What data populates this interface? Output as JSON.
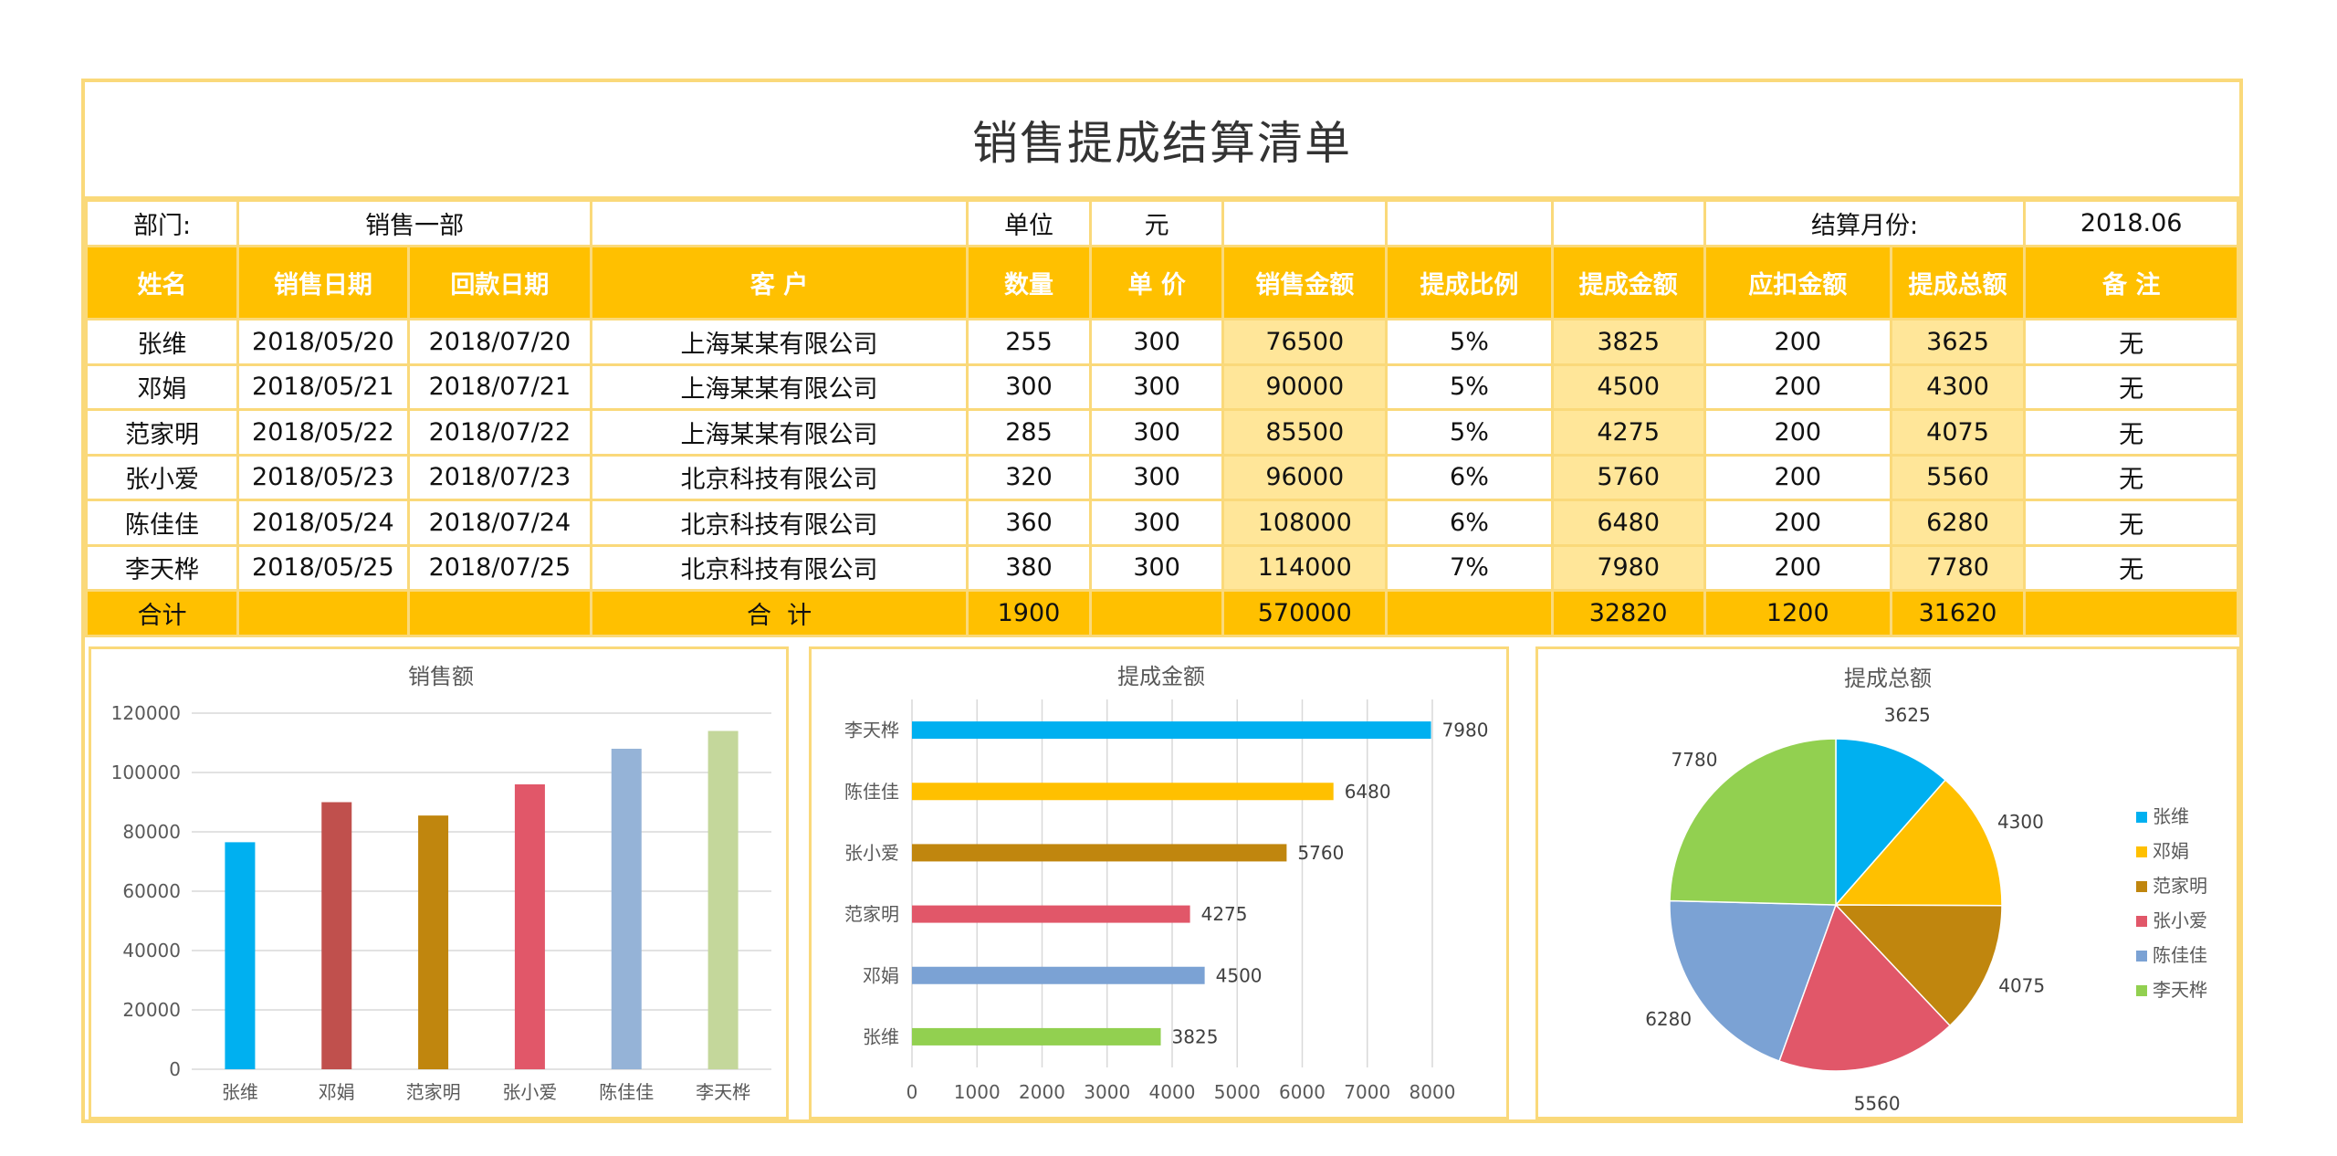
{
  "title": "销售提成结算清单",
  "info": {
    "dept_label": "部门:",
    "dept_value": "销售一部",
    "unit_label": "单位",
    "unit_value": "元",
    "month_label": "结算月份:",
    "month_value": "2018.06"
  },
  "columns": [
    "姓名",
    "销售日期",
    "回款日期",
    "客 户",
    "数量",
    "单 价",
    "销售金额",
    "提成比例",
    "提成金额",
    "应扣金额",
    "提成总额",
    "备 注"
  ],
  "rows": [
    [
      "张维",
      "2018/05/20",
      "2018/07/20",
      "上海某某有限公司",
      "255",
      "300",
      "76500",
      "5%",
      "3825",
      "200",
      "3625",
      "无"
    ],
    [
      "邓娟",
      "2018/05/21",
      "2018/07/21",
      "上海某某有限公司",
      "300",
      "300",
      "90000",
      "5%",
      "4500",
      "200",
      "4300",
      "无"
    ],
    [
      "范家明",
      "2018/05/22",
      "2018/07/22",
      "上海某某有限公司",
      "285",
      "300",
      "85500",
      "5%",
      "4275",
      "200",
      "4075",
      "无"
    ],
    [
      "张小爱",
      "2018/05/23",
      "2018/07/23",
      "北京科技有限公司",
      "320",
      "300",
      "96000",
      "6%",
      "5760",
      "200",
      "5560",
      "无"
    ],
    [
      "陈佳佳",
      "2018/05/24",
      "2018/07/24",
      "北京科技有限公司",
      "360",
      "300",
      "108000",
      "6%",
      "6480",
      "200",
      "6280",
      "无"
    ],
    [
      "李天桦",
      "2018/05/25",
      "2018/07/25",
      "北京科技有限公司",
      "380",
      "300",
      "114000",
      "7%",
      "7980",
      "200",
      "7780",
      "无"
    ]
  ],
  "total": {
    "label": "合计",
    "customer_label": "合  计",
    "quantity": "1900",
    "sales": "570000",
    "commission": "32820",
    "deduction": "1200",
    "commission_total": "31620"
  },
  "colors": {
    "border": "#FAD97A",
    "header": "#FFC000",
    "highlight": "#FFE699"
  },
  "chart_data": [
    {
      "type": "bar",
      "title": "销售额",
      "categories": [
        "张维",
        "邓娟",
        "范家明",
        "张小爱",
        "陈佳佳",
        "李天桦"
      ],
      "values": [
        76500,
        90000,
        85500,
        96000,
        108000,
        114000
      ],
      "colors": [
        "#00B0F0",
        "#C0504D",
        "#C0860E",
        "#E15769",
        "#95B3D7",
        "#C4D79B"
      ],
      "ylim": [
        0,
        120000
      ],
      "yticks": [
        0,
        20000,
        40000,
        60000,
        80000,
        100000,
        120000
      ],
      "grid": true
    },
    {
      "type": "bar",
      "orientation": "horizontal",
      "title": "提成金额",
      "categories": [
        "李天桦",
        "陈佳佳",
        "张小爱",
        "范家明",
        "邓娟",
        "张维"
      ],
      "values": [
        7980,
        6480,
        5760,
        4275,
        4500,
        3825
      ],
      "colors": [
        "#00B0F0",
        "#FFC000",
        "#C0860E",
        "#E15769",
        "#7BA2D4",
        "#92D050"
      ],
      "xlim": [
        0,
        8000
      ],
      "xticks": [
        0,
        1000,
        2000,
        3000,
        4000,
        5000,
        6000,
        7000,
        8000
      ],
      "data_labels": true,
      "grid": true
    },
    {
      "type": "pie",
      "title": "提成总额",
      "labels": [
        "张维",
        "邓娟",
        "范家明",
        "张小爱",
        "陈佳佳",
        "李天桦"
      ],
      "values": [
        3625,
        4300,
        4075,
        5560,
        6280,
        7780
      ],
      "colors": [
        "#00B0F0",
        "#FFC000",
        "#C0860E",
        "#E15769",
        "#7BA2D4",
        "#92D050"
      ],
      "legend": "right",
      "data_labels": true
    }
  ]
}
